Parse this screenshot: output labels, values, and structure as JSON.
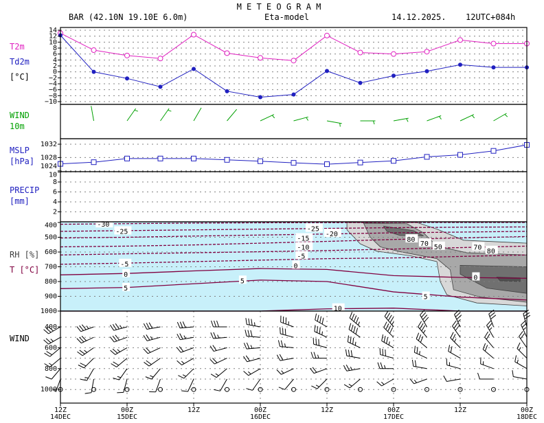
{
  "header": {
    "title": "M E T E O G R A M",
    "station": "BAR (42.10N 19.10E  6.0m)",
    "model": "Eta-model",
    "date": "14.12.2025.",
    "run": "12UTC+084h"
  },
  "panel_labels": {
    "t2m": "T2m",
    "td2m": "Td2m",
    "temp_unit": "[°C]",
    "wind10_a": "WIND",
    "wind10_b": "10m",
    "mslp": "MSLP",
    "mslp_unit": "[hPa]",
    "precip": "PRECIP",
    "precip_unit": "[mm]",
    "rh": "RH [%]",
    "t": "T [°C]",
    "wind_upper": "WIND"
  },
  "colors": {
    "t2m": "#e020c0",
    "td2m": "#2020c0",
    "mslp": "#2020c0",
    "wind10": "#00a000",
    "rh_bg": "#c8f0fa",
    "rh70": "#d8d8d8",
    "rh80": "#a8a8a8",
    "rh90": "#707070",
    "rh95": "#505050",
    "isotherm": "#800040"
  },
  "chart_data": {
    "type": "meteogram",
    "time_ticks": [
      {
        "t": 0,
        "hour": "12Z",
        "day": "14DEC"
      },
      {
        "t": 2,
        "hour": "00Z",
        "day": "15DEC"
      },
      {
        "t": 4,
        "hour": "12Z",
        "day": ""
      },
      {
        "t": 6,
        "hour": "00Z",
        "day": "16DEC"
      },
      {
        "t": 8,
        "hour": "12Z",
        "day": ""
      },
      {
        "t": 10,
        "hour": "00Z",
        "day": "17DEC"
      },
      {
        "t": 12,
        "hour": "12Z",
        "day": ""
      },
      {
        "t": 14,
        "hour": "00Z",
        "day": "18DEC"
      }
    ],
    "time_step_hours": 6,
    "temperature": {
      "ylim": [
        -10,
        14
      ],
      "yticks": [
        -10,
        -8,
        -6,
        -4,
        -2,
        0,
        2,
        4,
        6,
        8,
        10,
        12,
        14
      ],
      "t2m": [
        13,
        7.3,
        5.5,
        4.5,
        12.5,
        6.3,
        4.7,
        3.8,
        12.2,
        6.5,
        6.0,
        6.8,
        10.7,
        9.5,
        9.5
      ],
      "td2m": [
        12.3,
        0,
        -2.2,
        -5,
        1,
        -6.5,
        -8.5,
        -7.6,
        0.3,
        -3.7,
        -1.3,
        0.2,
        2.4,
        1.5,
        1.5
      ]
    },
    "wind10m": {
      "dir": [
        null,
        350,
        35,
        35,
        30,
        40,
        65,
        75,
        100,
        90,
        80,
        70,
        65,
        60,
        null
      ],
      "speed_kt": [
        null,
        3,
        5,
        5,
        3,
        3,
        5,
        5,
        5,
        5,
        5,
        5,
        5,
        5,
        null
      ]
    },
    "mslp": {
      "ylim": [
        1024,
        1032
      ],
      "yticks": [
        1024,
        1028,
        1032
      ],
      "values": [
        1026.1,
        1026.6,
        1027.7,
        1027.7,
        1027.7,
        1027.3,
        1026.9,
        1026.4,
        1026.0,
        1026.5,
        1027.0,
        1028.2,
        1028.8,
        1030.0,
        1031.8
      ]
    },
    "precip": {
      "ylim": [
        0,
        10
      ],
      "yticks": [
        2,
        4,
        6,
        8,
        10
      ],
      "values": [
        0,
        0,
        0,
        0,
        0,
        0,
        0,
        0,
        0,
        0,
        0,
        0,
        0,
        0,
        0
      ]
    },
    "rh_t": {
      "plim": [
        400,
        1000
      ],
      "pticks": [
        400,
        500,
        600,
        700,
        800,
        900,
        1000
      ],
      "isotherm_times": [
        0,
        2,
        4,
        6,
        8,
        10,
        12,
        14
      ],
      "isotherms": [
        {
          "level": -30,
          "p": [
            412,
            408,
            404,
            402,
            401,
            400,
            400,
            400
          ]
        },
        {
          "level": -25,
          "p": [
            460,
            455,
            450,
            445,
            440,
            435,
            432,
            430
          ]
        },
        {
          "level": -20,
          "p": [
            505,
            500,
            492,
            485,
            478,
            470,
            465,
            460
          ]
        },
        {
          "level": -15,
          "p": [
            565,
            560,
            552,
            540,
            528,
            515,
            505,
            495
          ]
        },
        {
          "level": -10,
          "p": [
            620,
            612,
            605,
            598,
            590,
            580,
            570,
            560
          ]
        },
        {
          "level": -5,
          "p": [
            683,
            675,
            665,
            655,
            645,
            640,
            630,
            620
          ]
        },
        {
          "level": 0,
          "p": [
            755,
            745,
            728,
            712,
            718,
            760,
            772,
            778
          ]
        },
        {
          "level": 5,
          "p": [
            848,
            840,
            815,
            790,
            800,
            870,
            905,
            925
          ]
        },
        {
          "level": 10,
          "p": [
            1000,
            1000,
            1000,
            1000,
            985,
            980,
            1000,
            1000
          ]
        }
      ],
      "isotherm_labels": [
        {
          "text": "-30",
          "t": 1.1,
          "p": 410
        },
        {
          "text": "-25",
          "t": 1.1,
          "p": 458
        },
        {
          "text": "-5",
          "t": 1.8,
          "p": 678
        },
        {
          "text": "0",
          "t": 1.9,
          "p": 748
        },
        {
          "text": "5",
          "t": 1.9,
          "p": 842
        },
        {
          "text": "5",
          "t": 5.4,
          "p": 792
        },
        {
          "text": "-25",
          "t": 7.4,
          "p": 440
        },
        {
          "text": "-20",
          "t": 7.1,
          "p": 475
        },
        {
          "text": "-15",
          "t": 7.1,
          "p": 505
        },
        {
          "text": "-10",
          "t": 7.1,
          "p": 565
        },
        {
          "text": "-5",
          "t": 7.1,
          "p": 625
        },
        {
          "text": "0",
          "t": 7.0,
          "p": 690
        },
        {
          "text": "5",
          "t": 10.9,
          "p": 900
        },
        {
          "text": "10",
          "t": 8.2,
          "p": 980
        },
        {
          "text": "0",
          "t": 12.4,
          "p": 770
        }
      ],
      "rh_regions": [
        {
          "level": 70,
          "pts": [
            [
              8.6,
              400
            ],
            [
              10.7,
              400
            ],
            [
              11.3,
              445
            ],
            [
              12.1,
              520
            ],
            [
              14,
              540
            ],
            [
              14,
              965
            ],
            [
              12.5,
              945
            ],
            [
              11.6,
              890
            ],
            [
              11.4,
              800
            ],
            [
              11.3,
              665
            ],
            [
              10.5,
              625
            ],
            [
              9.5,
              595
            ],
            [
              9.0,
              545
            ],
            [
              8.6,
              450
            ]
          ]
        },
        {
          "level": 80,
          "pts": [
            [
              9.1,
              405
            ],
            [
              10.4,
              408
            ],
            [
              10.9,
              470
            ],
            [
              11.3,
              560
            ],
            [
              12.2,
              605
            ],
            [
              14,
              620
            ],
            [
              14,
              940
            ],
            [
              12.6,
              905
            ],
            [
              11.8,
              855
            ],
            [
              11.7,
              720
            ],
            [
              11.3,
              645
            ],
            [
              10.2,
              598
            ],
            [
              9.6,
              565
            ],
            [
              9.3,
              500
            ]
          ]
        },
        {
          "level": 90,
          "pts": [
            [
              9.7,
              425
            ],
            [
              10.6,
              455
            ],
            [
              10.9,
              490
            ],
            [
              10.2,
              488
            ],
            [
              9.8,
              460
            ]
          ]
        },
        {
          "level": 90,
          "pts": [
            [
              12.0,
              690
            ],
            [
              14,
              700
            ],
            [
              14,
              880
            ],
            [
              12.8,
              845
            ],
            [
              12.0,
              750
            ]
          ]
        },
        {
          "level": 95,
          "pts": [
            [
              13.1,
              770
            ],
            [
              13.8,
              775
            ],
            [
              13.8,
              800
            ],
            [
              13.2,
              795
            ]
          ]
        }
      ],
      "rh_labels": [
        {
          "text": "80",
          "t": 10.4,
          "p": 512
        },
        {
          "text": "70",
          "t": 10.8,
          "p": 540
        },
        {
          "text": "50",
          "t": 10.7,
          "p": 562
        },
        {
          "text": "70",
          "t": 12.4,
          "p": 566
        },
        {
          "text": "80",
          "t": 12.8,
          "p": 590
        }
      ]
    },
    "wind_upper": {
      "plim": [
        400,
        1000
      ],
      "pticks": [
        400,
        600,
        800,
        1000
      ],
      "levels": [
        400,
        500,
        600,
        700,
        800,
        900,
        1000
      ],
      "dir": [
        [
          240,
          240,
          230,
          230,
          220,
          200,
          0
        ],
        [
          250,
          245,
          235,
          225,
          210,
          190,
          0
        ],
        [
          255,
          250,
          240,
          230,
          215,
          195,
          0
        ],
        [
          260,
          255,
          245,
          235,
          220,
          200,
          0
        ],
        [
          265,
          260,
          250,
          240,
          225,
          205,
          0
        ],
        [
          270,
          265,
          255,
          245,
          230,
          210,
          0
        ],
        [
          280,
          275,
          265,
          255,
          240,
          215,
          0
        ],
        [
          290,
          285,
          275,
          260,
          245,
          220,
          0
        ],
        [
          300,
          295,
          285,
          270,
          250,
          225,
          0
        ],
        [
          310,
          305,
          295,
          280,
          260,
          230,
          0
        ],
        [
          320,
          315,
          300,
          285,
          270,
          240,
          0
        ],
        [
          330,
          320,
          310,
          295,
          280,
          250,
          0
        ],
        [
          335,
          325,
          315,
          300,
          285,
          260,
          0
        ],
        [
          340,
          330,
          320,
          310,
          290,
          270,
          0
        ],
        [
          345,
          335,
          325,
          315,
          300,
          280,
          0
        ]
      ],
      "speed_kt": [
        [
          30,
          25,
          20,
          15,
          10,
          5,
          0
        ],
        [
          35,
          30,
          25,
          20,
          15,
          10,
          0
        ],
        [
          35,
          30,
          25,
          20,
          15,
          10,
          0
        ],
        [
          30,
          25,
          20,
          20,
          15,
          10,
          0
        ],
        [
          30,
          25,
          20,
          15,
          15,
          10,
          0
        ],
        [
          30,
          25,
          20,
          20,
          15,
          10,
          0
        ],
        [
          35,
          30,
          25,
          20,
          15,
          10,
          0
        ],
        [
          35,
          30,
          25,
          20,
          15,
          10,
          0
        ],
        [
          40,
          35,
          30,
          25,
          20,
          15,
          0
        ],
        [
          45,
          40,
          35,
          30,
          25,
          15,
          0
        ],
        [
          45,
          40,
          35,
          30,
          25,
          15,
          0
        ],
        [
          40,
          35,
          30,
          25,
          20,
          15,
          0
        ],
        [
          35,
          30,
          25,
          20,
          15,
          10,
          0
        ],
        [
          30,
          25,
          20,
          20,
          15,
          10,
          0
        ],
        [
          30,
          25,
          20,
          15,
          15,
          10,
          0
        ]
      ]
    }
  }
}
